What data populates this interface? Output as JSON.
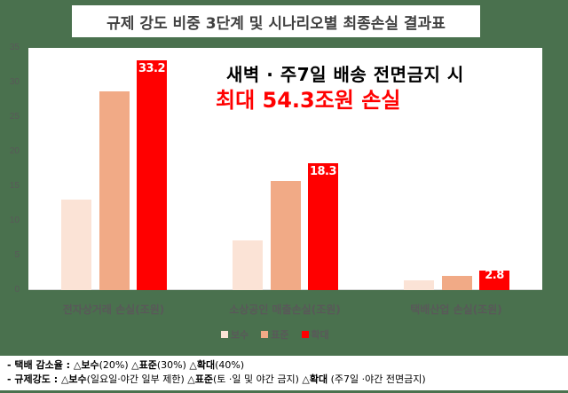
{
  "title": "규제 강도 비중 3단계 및 시나리오별 최종손실 결과표",
  "annotation": {
    "line1": "새벽 · 주7일 배송 전면금지 시",
    "line2": "최대 54.3조원 손실"
  },
  "colors": {
    "background": "#4a714e",
    "conservative": "#fbe3d6",
    "standard": "#f1aa86",
    "expanded": "#ff0000"
  },
  "yaxis": {
    "ticks": [
      "0",
      "5",
      "10",
      "15",
      "20",
      "25",
      "30",
      "35"
    ]
  },
  "categories": [
    "전자상거래 손실(조원)",
    "소상공인 매출손실(조원)",
    "택배산업 손실(조원)"
  ],
  "legend": [
    {
      "label": "보수",
      "color": "#fbe3d6"
    },
    {
      "label": "표준",
      "color": "#f1aa86"
    },
    {
      "label": "확대",
      "color": "#ff0000"
    }
  ],
  "bar_labels": [
    "33.2",
    "18.3",
    "2.8"
  ],
  "footer": {
    "line1_lead": "- 택배 감소율 : ",
    "line1_items": [
      {
        "label": "△보수",
        "detail": "(20%)"
      },
      {
        "label": "△표준",
        "detail": "(30%)"
      },
      {
        "label": "△확대",
        "detail": "(40%)"
      }
    ],
    "line2_lead": "- 규제강도 : ",
    "line2_items": [
      {
        "label": "△보수",
        "detail": "(일요일·야간 일부 제한)"
      },
      {
        "label": "△표준",
        "detail": "(토 ·일 및 야간 금지)"
      },
      {
        "label": "△확대",
        "detail": " (주7일 ·야간 전면금지)"
      }
    ]
  },
  "chart_data": {
    "type": "bar",
    "title": "규제 강도 비중 3단계 및 시나리오별 최종손실 결과표",
    "categories": [
      "전자상거래 손실(조원)",
      "소상공인 매출손실(조원)",
      "택배산업 손실(조원)"
    ],
    "series": [
      {
        "name": "보수",
        "values": [
          13.1,
          7.2,
          1.4
        ]
      },
      {
        "name": "표준",
        "values": [
          28.7,
          15.8,
          2.1
        ]
      },
      {
        "name": "확대",
        "values": [
          33.2,
          18.3,
          2.8
        ]
      }
    ],
    "data_labels": {
      "확대": [
        33.2,
        18.3,
        2.8
      ]
    },
    "annotations": [
      "새벽 · 주7일 배송 전면금지 시",
      "최대 54.3조원 손실"
    ],
    "xlabel": "",
    "ylabel": "",
    "ylim": [
      0,
      35
    ],
    "yticks": [
      0,
      5,
      10,
      15,
      20,
      25,
      30,
      35
    ],
    "grid": false,
    "legend_position": "bottom"
  }
}
